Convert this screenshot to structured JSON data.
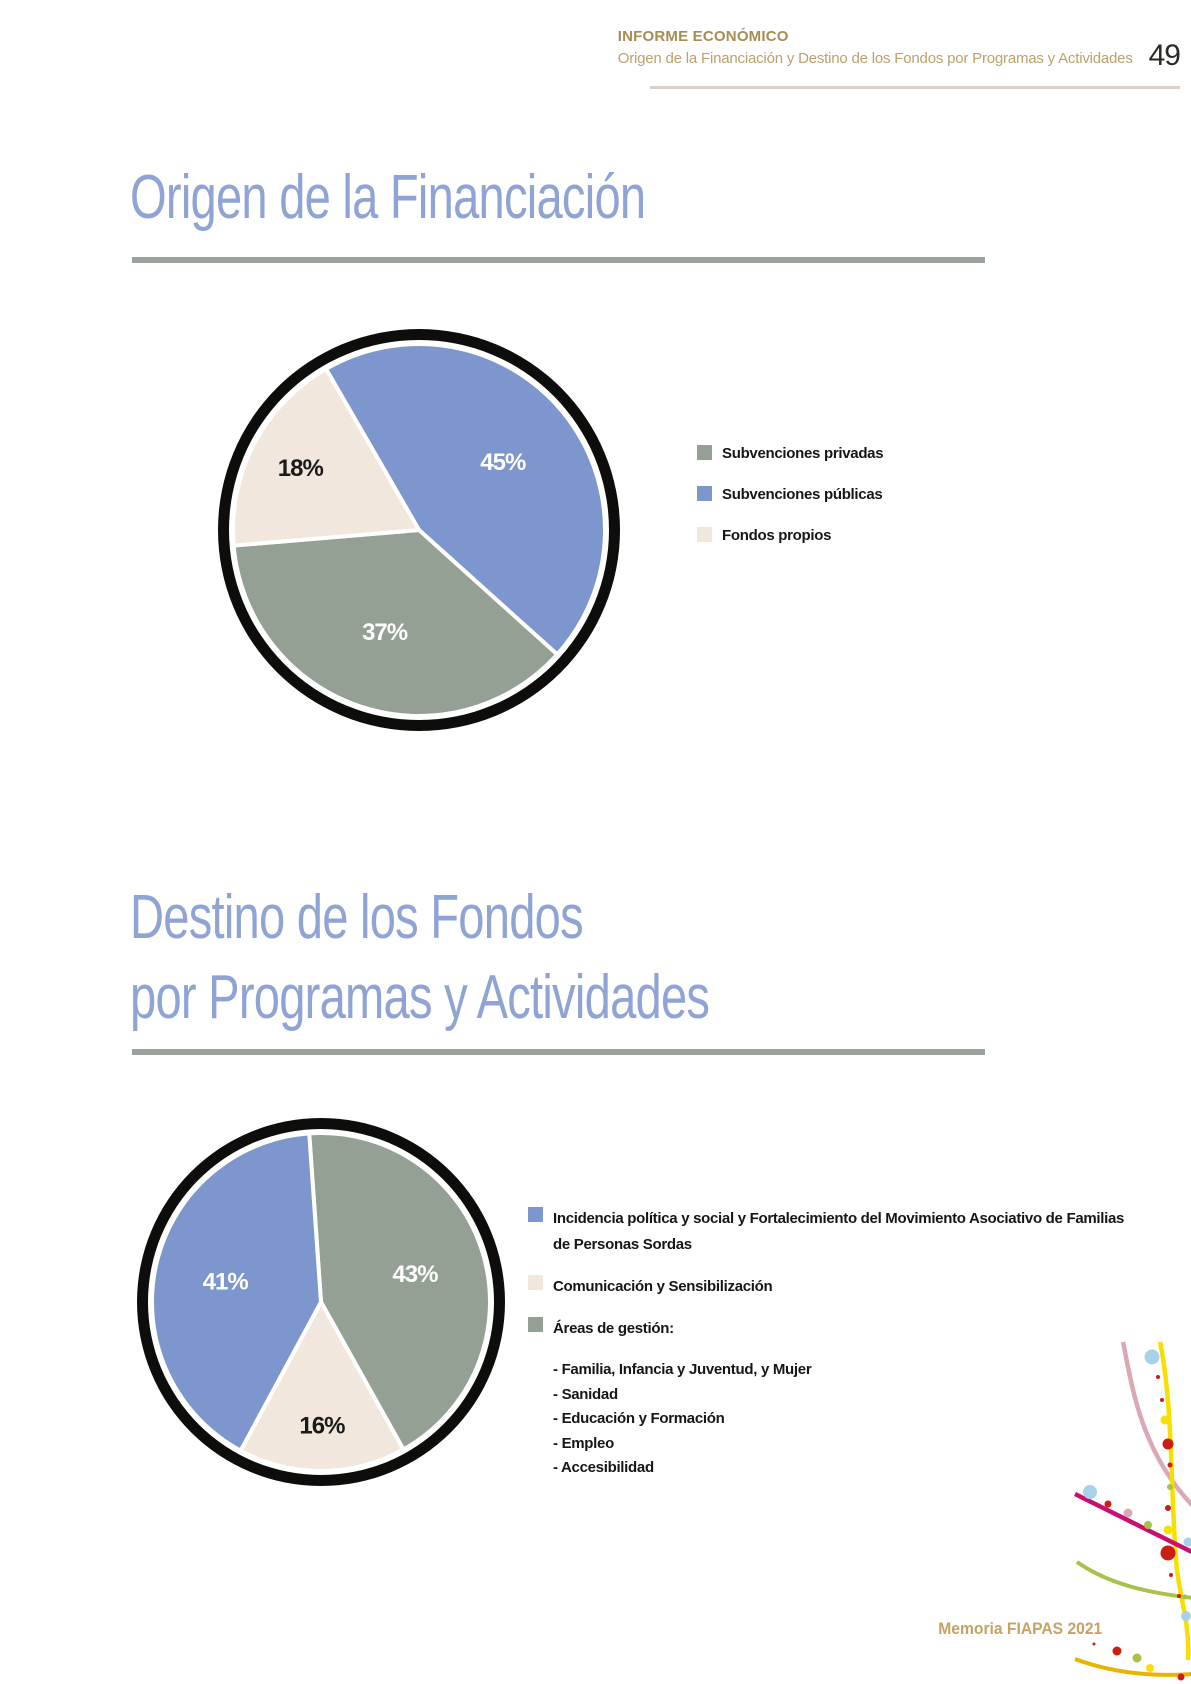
{
  "page": {
    "header": {
      "kicker": "INFORME ECONÓMICO",
      "subtitle": "Origen de la Financiación y Destino de los Fondos por Programas y Actividades",
      "page_number": "49"
    },
    "footer": {
      "text": "Memoria FIAPAS 2021"
    }
  },
  "sections": [
    {
      "title_lines": [
        "Origen de la Financiación"
      ]
    },
    {
      "title_lines": [
        "Destino de los Fondos",
        "por Programas y Actividades"
      ]
    }
  ],
  "colors": {
    "title_blue": "#8fa3d4",
    "rule_gray": "#9aa39b",
    "header_gold_dark": "#a98c53",
    "header_gold_light": "#bda06c",
    "footer_gold": "#c6a264",
    "pie_ring_black": "#0d0d0b",
    "slice_blue": "#7e96ce",
    "slice_gray": "#95a095",
    "slice_cream": "#f2e7dd"
  },
  "chart_data": [
    {
      "type": "pie",
      "title": "Origen de la Financiación",
      "start_angle": -30,
      "slices": [
        {
          "label": "Subvenciones públicas",
          "value": 45,
          "display": "45%",
          "color": "#7e96ce",
          "label_color": "#ffffff"
        },
        {
          "label": "Subvenciones privadas",
          "value": 37,
          "display": "37%",
          "color": "#95a095",
          "label_color": "#ffffff"
        },
        {
          "label": "Fondos propios",
          "value": 18,
          "display": "18%",
          "color": "#f2e7dd",
          "label_color": "#1a1a1a",
          "label_r": 0.72
        }
      ],
      "legend_position": "right",
      "legend": [
        {
          "label": "Subvenciones privadas",
          "color": "#95a095"
        },
        {
          "label": "Subvenciones públicas",
          "color": "#7e96ce"
        },
        {
          "label": "Fondos propios",
          "color": "#f2e7dd"
        }
      ]
    },
    {
      "type": "pie",
      "title": "Destino de los Fondos por Programas y Actividades",
      "start_angle": -4,
      "slices": [
        {
          "label": "Áreas de gestión",
          "value": 43,
          "display": "43%",
          "color": "#95a095",
          "label_color": "#ffffff"
        },
        {
          "label": "Comunicación y Sensibilización",
          "value": 16,
          "display": "16%",
          "color": "#f2e7dd",
          "label_color": "#1a1a1a",
          "label_r": 0.73
        },
        {
          "label": "Incidencia política y social y Fortalecimiento del Movimiento Asociativo de Familias de Personas Sordas",
          "value": 41,
          "display": "41%",
          "color": "#7e96ce",
          "label_color": "#ffffff"
        }
      ],
      "legend_position": "right",
      "legend": [
        {
          "label": "Incidencia política y social y Fortalecimiento del Movimiento Asociativo de Familias de Personas Sordas",
          "color": "#7e96ce"
        },
        {
          "label": "Comunicación y Sensibilización",
          "color": "#f2e7dd"
        },
        {
          "label": "Áreas de gestión:",
          "color": "#95a095",
          "sub_items": [
            "- Familia, Infancia y Juventud, y Mujer",
            "- Sanidad",
            "- Educación y Formación",
            "- Empleo",
            "- Accesibilidad"
          ]
        }
      ]
    }
  ],
  "decoration": {
    "palette": {
      "pink": "#d9aab4",
      "yellow": "#f7e000",
      "magenta": "#cb0e72",
      "green": "#a8c148",
      "gold": "#e8b400",
      "light_blue": "#a8d2ec",
      "red": "#cc1d15"
    }
  }
}
